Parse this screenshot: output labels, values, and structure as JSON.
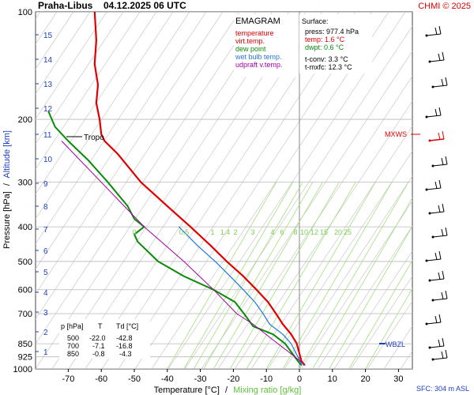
{
  "header": {
    "station": "Praha-Libus",
    "datetime": "04.12.2025 06 UTC",
    "credit": "CHMI © 2025"
  },
  "legend": {
    "title": "EMAGRAM",
    "items": [
      {
        "label": "temperature",
        "color": "#e00000"
      },
      {
        "label": "virt.temp.",
        "color": "#e00000"
      },
      {
        "label": "dew point",
        "color": "#0a8a0a"
      },
      {
        "label": "wet bulb temp.",
        "color": "#2277dd"
      },
      {
        "label": "udpraft v.temp.",
        "color": "#a000a0"
      }
    ]
  },
  "surface": {
    "title": "Surface:",
    "press": "press: 977.4 hPa",
    "temp": "temp: 1.6 °C",
    "dwpt": "dwpt: 0.6 °C",
    "tconv": "t-conv: 3.3 °C",
    "tmxfc": "t-mxfc: 12.3 °C"
  },
  "table": {
    "header": [
      "p [hPa]",
      "T",
      "Td [°C]"
    ],
    "rows": [
      [
        "500",
        "-22.0",
        "-42.8"
      ],
      [
        "700",
        "-7.1",
        "-16.8"
      ],
      [
        "850",
        "-0.8",
        "-4.3"
      ]
    ]
  },
  "axes": {
    "ylabel_pressure": "Pressure [hPa]",
    "ylabel_sep": "/",
    "ylabel_altitude": "Altitude [km]",
    "xlabel_temp": "Temperature [°C]",
    "xlabel_sep": "/",
    "xlabel_mix": "Mixing ratio [g/kg]",
    "sfc": "SFC: 304 m ASL"
  },
  "labels": {
    "tropo": "Tropo",
    "mxws": "MXWS",
    "wbzl": "WBZL"
  },
  "colors": {
    "temperature": "#e00000",
    "dewpoint": "#0a8a0a",
    "wetbulb": "#2277dd",
    "updraft": "#a000a0",
    "mixing": "#9fe07a",
    "grid": "#b8b8b8",
    "altitude": "#1f3fbf",
    "mixlabel": "#7dd050"
  },
  "chart_data": {
    "type": "line",
    "title": "EMAGRAM",
    "xlabel": "Temperature [°C] / Mixing ratio [g/kg]",
    "ylabel": "Pressure [hPa] / Altitude [km]",
    "xlim": [
      -80,
      30
    ],
    "ylim": [
      1000,
      100
    ],
    "y_scale": "log",
    "grid": true,
    "x_ticks": [
      -70,
      -60,
      -50,
      -40,
      -30,
      -20,
      -10,
      0,
      10,
      20,
      30
    ],
    "pressure_ticks": [
      1000,
      925,
      850,
      700,
      600,
      500,
      400,
      300,
      200,
      100
    ],
    "altitude_ticks_km": [
      1,
      2,
      3,
      4,
      5,
      6,
      7,
      8,
      9,
      10,
      11,
      12,
      13,
      14,
      15
    ],
    "mixing_ratio_labels": [
      "0",
      "0.5",
      "1",
      "1.4",
      "2",
      "3",
      "4",
      "6",
      "8",
      "10",
      "12",
      "15",
      "20",
      "25"
    ],
    "series": [
      {
        "name": "temperature",
        "points": [
          [
            1.6,
            977
          ],
          [
            0.6,
            950
          ],
          [
            -0.8,
            850
          ],
          [
            -2.5,
            800
          ],
          [
            -5.0,
            750
          ],
          [
            -7.1,
            700
          ],
          [
            -9.5,
            650
          ],
          [
            -13.0,
            600
          ],
          [
            -17.0,
            550
          ],
          [
            -22.0,
            500
          ],
          [
            -27.0,
            450
          ],
          [
            -33.0,
            400
          ],
          [
            -40.0,
            350
          ],
          [
            -48.0,
            300
          ],
          [
            -55.0,
            250
          ],
          [
            -59.0,
            230
          ],
          [
            -60.0,
            220
          ],
          [
            -60.5,
            200
          ],
          [
            -61.5,
            180
          ],
          [
            -61.0,
            160
          ],
          [
            -62.0,
            140
          ],
          [
            -61.5,
            120
          ],
          [
            -62.0,
            100
          ]
        ]
      },
      {
        "name": "dew point",
        "points": [
          [
            0.6,
            977
          ],
          [
            -0.5,
            950
          ],
          [
            -4.3,
            850
          ],
          [
            -8.0,
            800
          ],
          [
            -14.0,
            760
          ],
          [
            -16.8,
            700
          ],
          [
            -19.5,
            650
          ],
          [
            -26.0,
            600
          ],
          [
            -35.0,
            550
          ],
          [
            -42.8,
            500
          ],
          [
            -49.0,
            440
          ],
          [
            -50.0,
            420
          ],
          [
            -47.0,
            400
          ],
          [
            -50.0,
            380
          ],
          [
            -52.0,
            350
          ],
          [
            -58.0,
            300
          ],
          [
            -64.0,
            260
          ],
          [
            -70.0,
            230
          ],
          [
            -74.0,
            210
          ],
          [
            -76.0,
            190
          ]
        ]
      },
      {
        "name": "wet bulb temp.",
        "points": [
          [
            0.8,
            977
          ],
          [
            0.2,
            950
          ],
          [
            -2.5,
            850
          ],
          [
            -5.0,
            800
          ],
          [
            -9.0,
            750
          ],
          [
            -11.0,
            700
          ],
          [
            -13.5,
            650
          ],
          [
            -17.0,
            600
          ],
          [
            -21.0,
            550
          ],
          [
            -25.5,
            500
          ],
          [
            -31.0,
            450
          ],
          [
            -36.5,
            400
          ]
        ]
      },
      {
        "name": "udpraft v.temp.",
        "points": [
          [
            1.8,
            977
          ],
          [
            -3.0,
            900
          ],
          [
            -6.5,
            850
          ],
          [
            -14.0,
            750
          ],
          [
            -19.0,
            700
          ],
          [
            -26.0,
            600
          ],
          [
            -35.0,
            500
          ],
          [
            -47.0,
            400
          ],
          [
            -60.0,
            300
          ],
          [
            -72.0,
            230
          ]
        ]
      }
    ]
  }
}
